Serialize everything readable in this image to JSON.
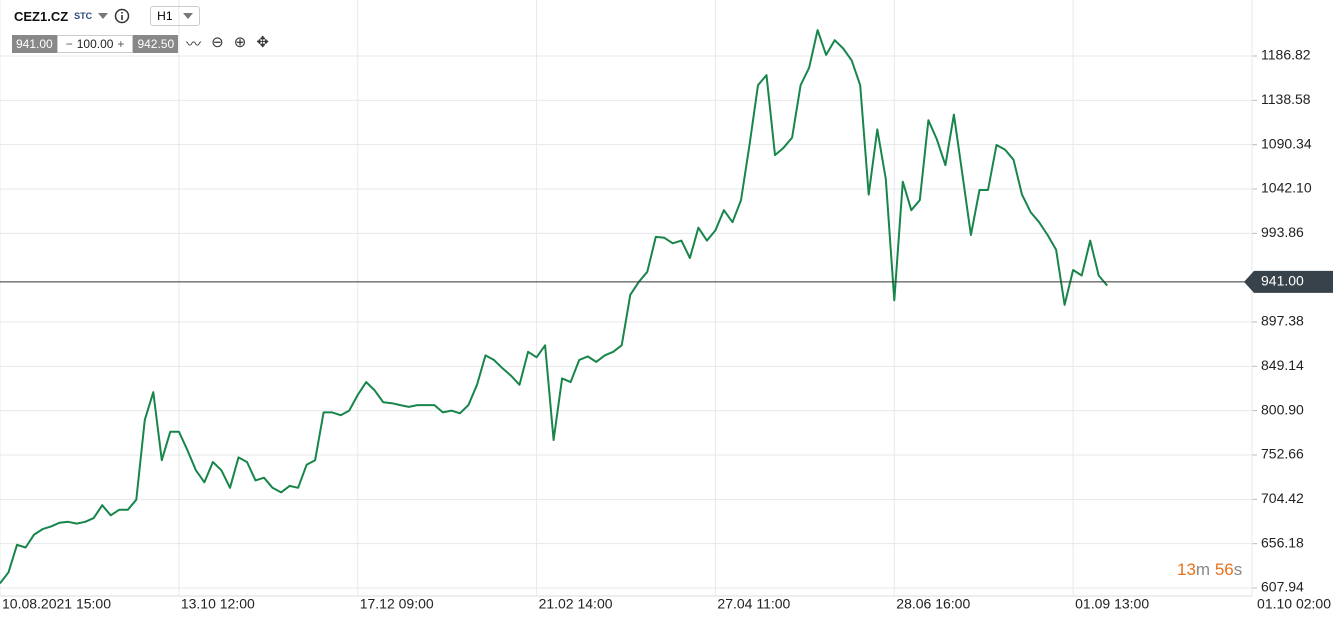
{
  "toolbar": {
    "symbol": "CEZ1.CZ",
    "market": "STC",
    "interval": "H1",
    "bid": "941.00",
    "volume": "100.00",
    "ask": "942.50"
  },
  "timer": {
    "minutes": "13",
    "minutes_unit": "m",
    "seconds": "56",
    "seconds_unit": "s"
  },
  "chart_data": {
    "type": "line",
    "categories": [
      "10.08.2021 15:00",
      null,
      null,
      null,
      null,
      null,
      null,
      null,
      null,
      null,
      null,
      null,
      null,
      null,
      null,
      null,
      null,
      null,
      null,
      null,
      null,
      "13.10 12:00",
      null,
      null,
      null,
      null,
      null,
      null,
      null,
      null,
      null,
      null,
      null,
      null,
      null,
      null,
      null,
      null,
      null,
      null,
      null,
      null,
      "17.12 09:00",
      null,
      null,
      null,
      null,
      null,
      null,
      null,
      null,
      null,
      null,
      null,
      null,
      null,
      null,
      null,
      null,
      null,
      null,
      null,
      null,
      "21.02 14:00",
      null,
      null,
      null,
      null,
      null,
      null,
      null,
      null,
      null,
      null,
      null,
      null,
      null,
      null,
      null,
      null,
      null,
      null,
      null,
      null,
      "27.04 11:00",
      null,
      null,
      null,
      null,
      null,
      null,
      null,
      null,
      null,
      null,
      null,
      null,
      null,
      null,
      null,
      null,
      null,
      null,
      null,
      null,
      "28.06 16:00",
      null,
      null,
      null,
      null,
      null,
      null,
      null,
      null,
      null,
      null,
      null,
      null,
      null,
      null,
      null,
      null,
      null,
      null,
      null,
      null,
      "01.09 13:00",
      null,
      null,
      null,
      null,
      null,
      null,
      null,
      null,
      null,
      null,
      null,
      null,
      null,
      null,
      null,
      null,
      null,
      null,
      null,
      null,
      "01.10 02:00"
    ],
    "series": [
      {
        "color": "#18864a",
        "values": [
          613,
          625,
          655,
          652,
          666,
          672,
          675,
          679,
          680,
          678,
          680,
          684,
          698,
          687,
          693,
          693,
          704,
          791,
          821,
          747,
          778,
          778,
          758,
          736,
          723,
          745,
          736,
          717,
          750,
          745,
          725,
          728,
          717,
          712,
          719,
          717,
          742,
          747,
          799,
          799,
          796,
          801,
          818,
          832,
          823,
          810,
          809,
          807,
          805,
          807,
          807,
          807,
          799,
          801,
          798,
          807,
          829,
          861,
          856,
          847,
          839,
          829,
          865,
          859,
          872,
          769,
          836,
          832,
          856,
          860,
          854,
          861,
          865,
          872,
          927,
          941,
          952,
          990,
          989,
          983,
          986,
          967,
          1000,
          986,
          997,
          1019,
          1006,
          1030,
          1090,
          1155,
          1166,
          1079,
          1087,
          1098,
          1155,
          1174,
          1215,
          1188,
          1204,
          1195,
          1182,
          1155,
          1036,
          1107,
          1053,
          921,
          1050,
          1019,
          1030,
          1117,
          1096,
          1068,
          1123,
          1058,
          992,
          1041,
          1041,
          1090,
          1085,
          1074,
          1036,
          1017,
          1006,
          992,
          976,
          916,
          954,
          948,
          986,
          948,
          937,
          null,
          null,
          null,
          null,
          null,
          null,
          null,
          null,
          null,
          null,
          null,
          null,
          null,
          null,
          null,
          null,
          null
        ]
      }
    ],
    "ylim": [
      599.24,
      1236.87
    ],
    "yticks": [
      {
        "value": 607.94,
        "label": "607.94"
      },
      {
        "value": 656.18,
        "label": "656.18"
      },
      {
        "value": 704.42,
        "label": "704.42"
      },
      {
        "value": 752.66,
        "label": "752.66"
      },
      {
        "value": 800.9,
        "label": "800.90"
      },
      {
        "value": 849.14,
        "label": "849.14"
      },
      {
        "value": 897.38,
        "label": "897.38"
      },
      {
        "value": 993.86,
        "label": "993.86"
      },
      {
        "value": 1042.1,
        "label": "1042.10"
      },
      {
        "value": 1090.34,
        "label": "1090.34"
      },
      {
        "value": 1138.58,
        "label": "1138.58"
      },
      {
        "value": 1186.82,
        "label": "1186.82"
      }
    ],
    "current_price": {
      "value": 941,
      "label": "941.00"
    },
    "grid": true
  }
}
